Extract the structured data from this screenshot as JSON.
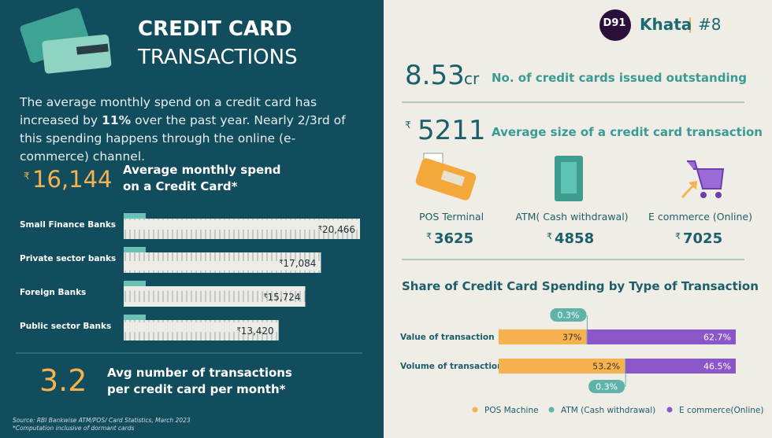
{
  "header": {
    "logo": "D91",
    "name": "Khata",
    "issue": "#8"
  },
  "title": {
    "line1": "CREDIT CARD",
    "line2": "TRANSACTIONS"
  },
  "intro": {
    "before": "The average monthly spend on a credit card has increased by ",
    "bold": "11%",
    "after": " over the past year. Nearly 2/3rd of this spending happens through the online (e-commerce) channel."
  },
  "avg_spend": {
    "currency": "₹",
    "value": "16,144",
    "label_line1": "Average monthly spend",
    "label_line2": "on a Credit Card*"
  },
  "bank_chart": {
    "type": "bar",
    "categories": [
      "Small Finance Banks",
      "Private sector banks",
      "Foreign Banks",
      "Public sector Banks"
    ],
    "currency": "₹",
    "values": [
      20466,
      17084,
      15724,
      13420
    ],
    "value_labels": [
      "20,466",
      "17,084",
      "15,724",
      "13,420"
    ],
    "color": "#ecebe5",
    "tab_color": "#6cc1b6"
  },
  "avg_transactions": {
    "value": "3.2",
    "label_line1": "Avg number of transactions",
    "label_line2": "per credit card per month*"
  },
  "cards_outstanding": {
    "value": "8.53",
    "unit": "cr",
    "label": "No. of credit cards issued outstanding"
  },
  "avg_txn_size": {
    "currency": "₹",
    "value": "5211",
    "label": "Average size of a credit card transaction"
  },
  "channels": [
    {
      "name": "POS Terminal",
      "currency": "₹",
      "value": "3625"
    },
    {
      "name": "ATM( Cash withdrawal)",
      "currency": "₹",
      "value": "4858"
    },
    {
      "name": "E commerce (Online)",
      "currency": "₹",
      "value": "7025"
    }
  ],
  "share_chart": {
    "type": "stacked-bar",
    "title": "Share of Credit Card Spending by Type of Transaction",
    "categories": [
      "Value of transaction",
      "Volume of transaction"
    ],
    "series": [
      {
        "name": "POS Machine",
        "color": "#f5b24f",
        "values": [
          37,
          53.2
        ],
        "value_labels": [
          "37%",
          "53.2%"
        ]
      },
      {
        "name": "ATM (Cash withdrawal)",
        "color": "#5fb3a9",
        "values": [
          0.3,
          0.3
        ],
        "value_labels": [
          "0.3%",
          "0.3%"
        ]
      },
      {
        "name": "E commerce(Online)",
        "color": "#8b56c8",
        "values": [
          62.7,
          46.5
        ],
        "value_labels": [
          "62.7%",
          "46.5%"
        ]
      }
    ]
  },
  "source": "Source: RBI Bankwise ATM/POS/ Card Statistics, March 2023",
  "note": "*Computation inclusive of dormant cards"
}
